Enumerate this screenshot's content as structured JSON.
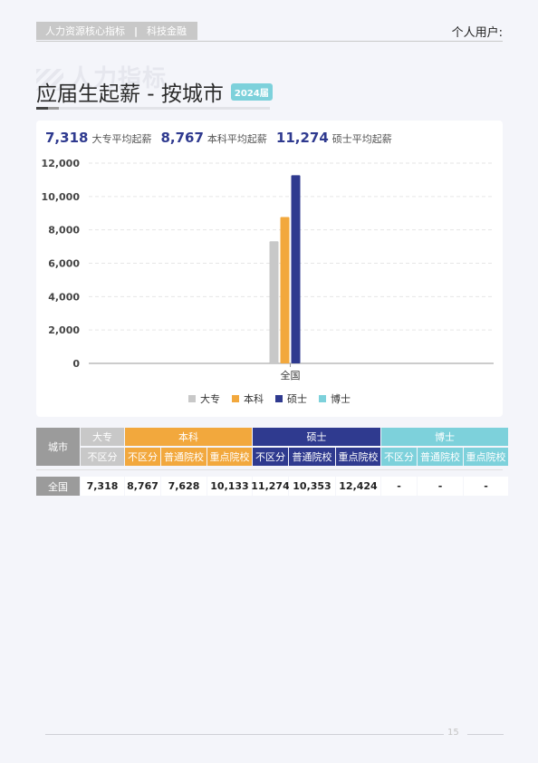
{
  "header": {
    "tag_left": "人力资源核心指标",
    "tag_sep": "|",
    "tag_right": "科技金融",
    "user_label": "个人用户:"
  },
  "title": {
    "watermark": "人力指标",
    "text": "应届生起薪 - 按城市",
    "year_badge": "2024届"
  },
  "summary": [
    {
      "value": "7,318",
      "label": "大专平均起薪"
    },
    {
      "value": "8,767",
      "label": "本科平均起薪"
    },
    {
      "value": "11,274",
      "label": "硕士平均起薪"
    }
  ],
  "colors": {
    "dazhuan": "#c8c8c8",
    "benke": "#f2a83d",
    "shuoshi": "#2f3a8f",
    "boshi": "#7dd1db"
  },
  "chart_data": {
    "type": "bar",
    "categories": [
      "全国"
    ],
    "series": [
      {
        "name": "大专",
        "values": [
          7318
        ],
        "color": "#c8c8c8"
      },
      {
        "name": "本科",
        "values": [
          8767
        ],
        "color": "#f2a83d"
      },
      {
        "name": "硕士",
        "values": [
          11274
        ],
        "color": "#2f3a8f"
      },
      {
        "name": "博士",
        "values": [
          0
        ],
        "color": "#7dd1db"
      }
    ],
    "yticks": [
      "0",
      "2,000",
      "4,000",
      "6,000",
      "8,000",
      "10,000",
      "12,000"
    ],
    "ylim": [
      0,
      12000
    ],
    "grid": true,
    "legend": "bottom"
  },
  "table": {
    "city_header": "城市",
    "groups": [
      {
        "label": "大专",
        "color": "#c8c8c8",
        "subs": [
          "不区分"
        ]
      },
      {
        "label": "本科",
        "color": "#f2a83d",
        "subs": [
          "不区分",
          "普通院校",
          "重点院校"
        ]
      },
      {
        "label": "硕士",
        "color": "#2f3a8f",
        "subs": [
          "不区分",
          "普通院校",
          "重点院校"
        ]
      },
      {
        "label": "博士",
        "color": "#7dd1db",
        "subs": [
          "不区分",
          "普通院校",
          "重点院校"
        ]
      }
    ],
    "rows": [
      {
        "city": "全国",
        "values": [
          "7,318",
          "8,767",
          "7,628",
          "10,133",
          "11,274",
          "10,353",
          "12,424",
          "-",
          "-",
          "-"
        ]
      }
    ]
  },
  "footer": {
    "page": "15"
  }
}
